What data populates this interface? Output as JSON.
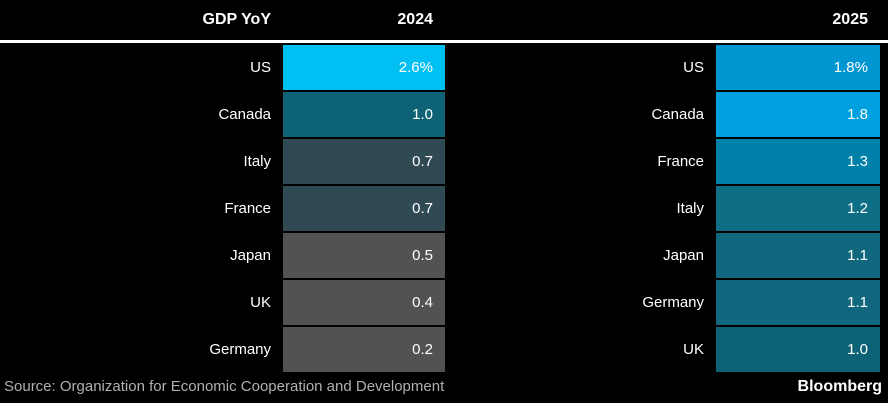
{
  "header": {
    "metric_label": "GDP YoY",
    "col_2024": "2024",
    "col_2025": "2025"
  },
  "chart_data": {
    "type": "heatmap",
    "title": "GDP YoY",
    "columns": [
      "2024",
      "2025"
    ],
    "unit": "percent year-over-year",
    "palette_note": "higher growth = brighter cyan/blue, lower growth = gray",
    "tables": [
      {
        "year": "2024",
        "rows": [
          {
            "country": "US",
            "value": "2.6%",
            "numeric": 2.6,
            "color": "#00c0f3"
          },
          {
            "country": "Canada",
            "value": "1.0",
            "numeric": 1.0,
            "color": "#0d6375"
          },
          {
            "country": "Italy",
            "value": "0.7",
            "numeric": 0.7,
            "color": "#2f4a53"
          },
          {
            "country": "France",
            "value": "0.7",
            "numeric": 0.7,
            "color": "#2f4a53"
          },
          {
            "country": "Japan",
            "value": "0.5",
            "numeric": 0.5,
            "color": "#525252"
          },
          {
            "country": "UK",
            "value": "0.4",
            "numeric": 0.4,
            "color": "#525252"
          },
          {
            "country": "Germany",
            "value": "0.2",
            "numeric": 0.2,
            "color": "#525252"
          }
        ]
      },
      {
        "year": "2025",
        "rows": [
          {
            "country": "US",
            "value": "1.8%",
            "numeric": 1.8,
            "color": "#0096d2"
          },
          {
            "country": "Canada",
            "value": "1.8",
            "numeric": 1.8,
            "color": "#009fde"
          },
          {
            "country": "France",
            "value": "1.3",
            "numeric": 1.3,
            "color": "#0081a9"
          },
          {
            "country": "Italy",
            "value": "1.2",
            "numeric": 1.2,
            "color": "#0e6e86"
          },
          {
            "country": "Japan",
            "value": "1.1",
            "numeric": 1.1,
            "color": "#11687e"
          },
          {
            "country": "Germany",
            "value": "1.1",
            "numeric": 1.1,
            "color": "#11687e"
          },
          {
            "country": "UK",
            "value": "1.0",
            "numeric": 1.0,
            "color": "#0d6375"
          }
        ]
      }
    ]
  },
  "footer": {
    "source": "Source: Organization for Economic Cooperation and Development",
    "brand": "Bloomberg"
  }
}
